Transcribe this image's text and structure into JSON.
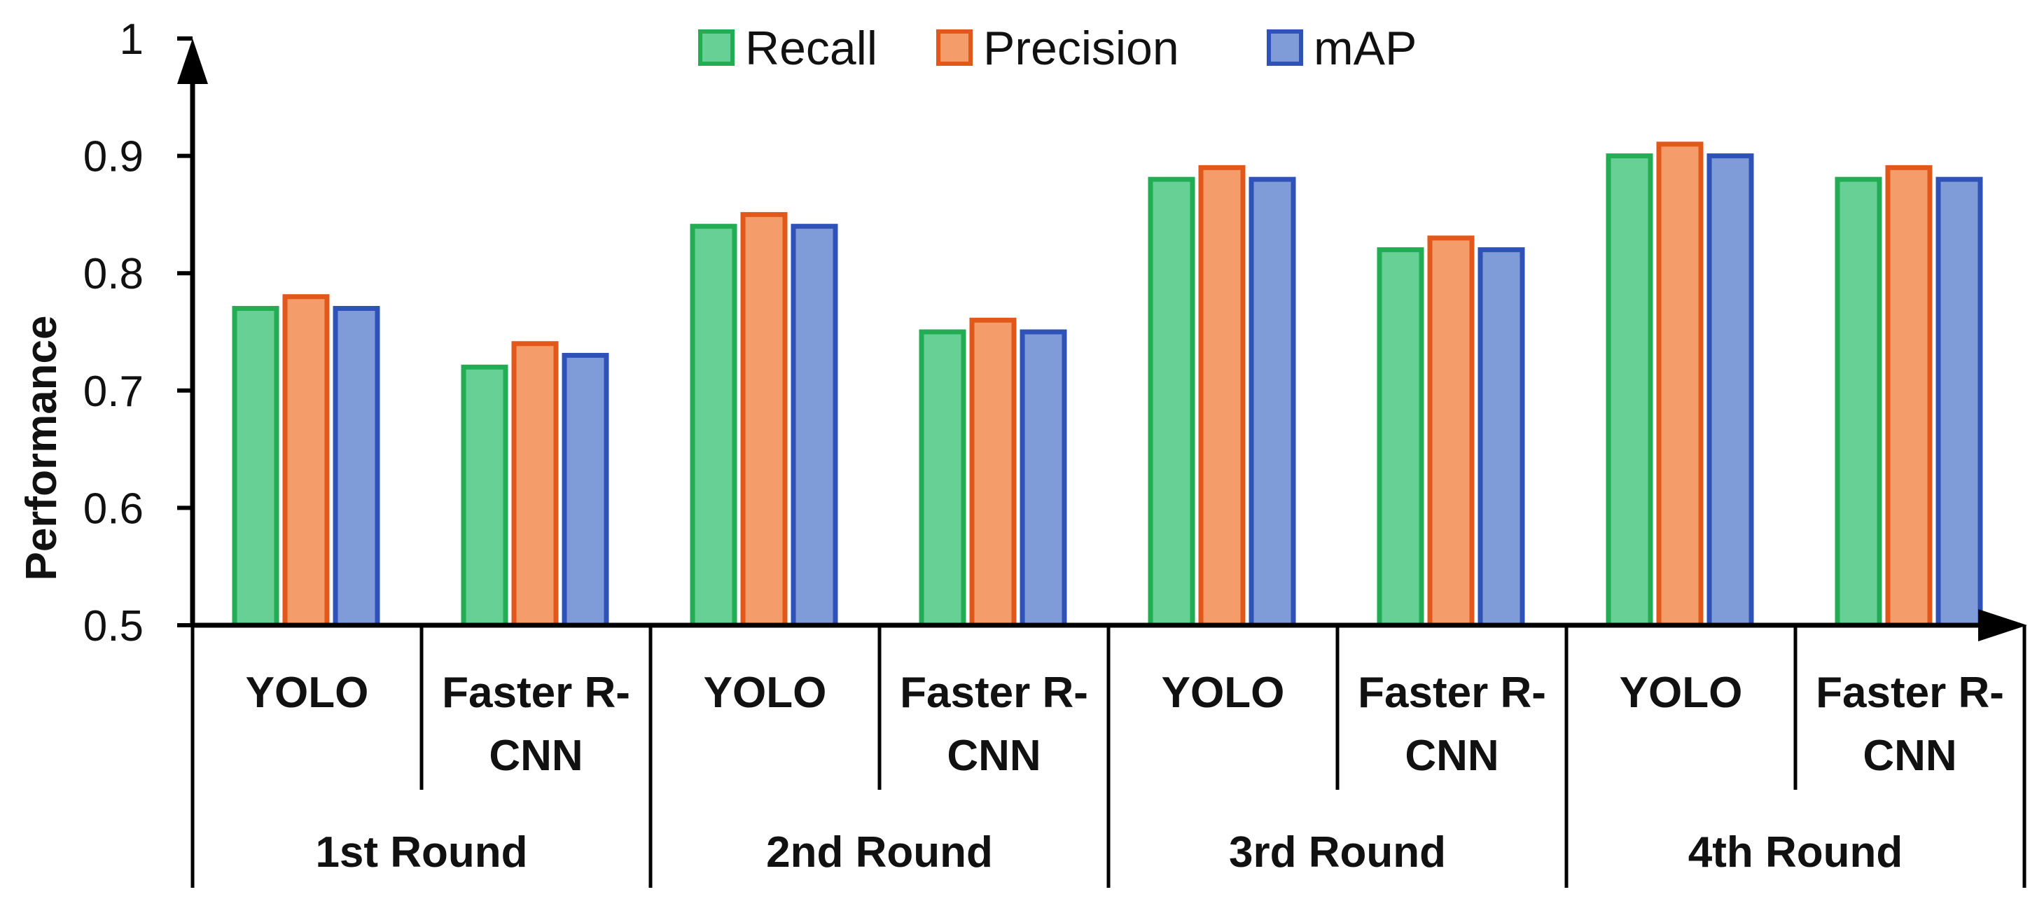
{
  "chart_data": {
    "type": "bar",
    "title": "",
    "xlabel": "",
    "ylabel": "Performance",
    "ylim": [
      0.5,
      1
    ],
    "yticks": [
      "0.5",
      "0.6",
      "0.7",
      "0.8",
      "0.9",
      "1"
    ],
    "grid": false,
    "legend_position": "top-center",
    "groups": [
      {
        "label": "1st Round",
        "models": [
          {
            "label_lines": [
              "YOLO"
            ],
            "values": [
              0.77,
              0.78,
              0.77
            ]
          },
          {
            "label_lines": [
              "Faster R-",
              "CNN"
            ],
            "values": [
              0.72,
              0.74,
              0.73
            ]
          }
        ]
      },
      {
        "label": "2nd Round",
        "models": [
          {
            "label_lines": [
              "YOLO"
            ],
            "values": [
              0.84,
              0.85,
              0.84
            ]
          },
          {
            "label_lines": [
              "Faster R-",
              "CNN"
            ],
            "values": [
              0.75,
              0.76,
              0.75
            ]
          }
        ]
      },
      {
        "label": "3rd Round",
        "models": [
          {
            "label_lines": [
              "YOLO"
            ],
            "values": [
              0.88,
              0.89,
              0.88
            ]
          },
          {
            "label_lines": [
              "Faster R-",
              "CNN"
            ],
            "values": [
              0.82,
              0.83,
              0.82
            ]
          }
        ]
      },
      {
        "label": "4th Round",
        "models": [
          {
            "label_lines": [
              "YOLO"
            ],
            "values": [
              0.9,
              0.91,
              0.9
            ]
          },
          {
            "label_lines": [
              "Faster R-",
              "CNN"
            ],
            "values": [
              0.88,
              0.89,
              0.88
            ]
          }
        ]
      }
    ],
    "series": [
      {
        "name": "Recall",
        "fill": "#66d095",
        "stroke": "#22ad55"
      },
      {
        "name": "Precision",
        "fill": "#f49c6a",
        "stroke": "#e2581b"
      },
      {
        "name": "mAP",
        "fill": "#7f9bd8",
        "stroke": "#2f52b8"
      }
    ]
  }
}
